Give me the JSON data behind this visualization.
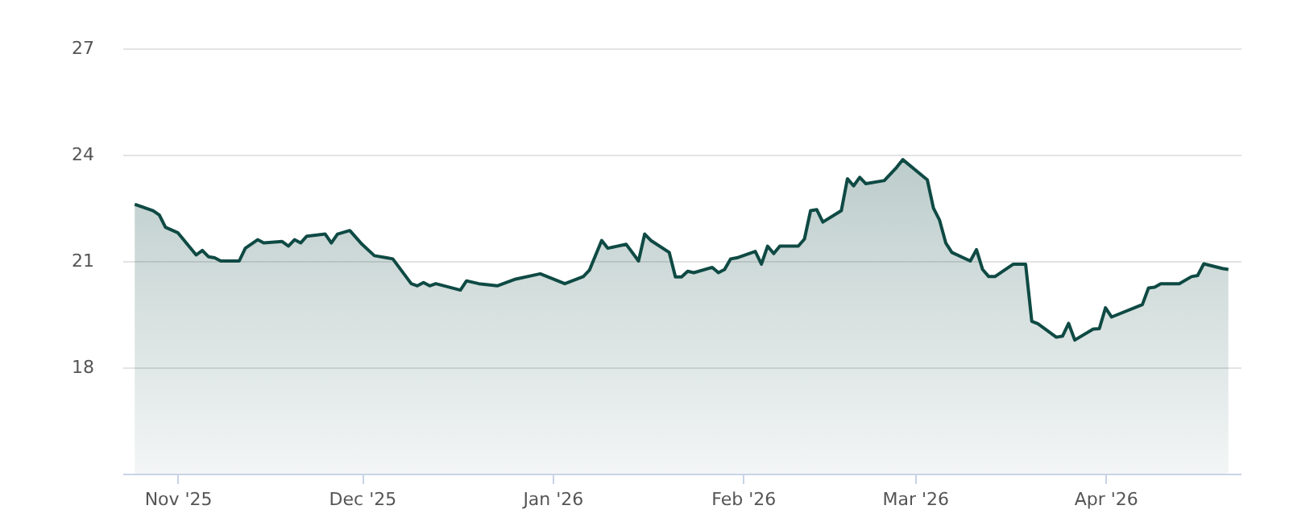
{
  "chart_data": {
    "type": "area",
    "grid": "y",
    "xlim": [
      "2025-10-23",
      "2026-04-23"
    ],
    "ylim": [
      15,
      27
    ],
    "yticks": [
      18,
      21,
      24,
      27
    ],
    "xticks": [
      {
        "value": "2025-11-01",
        "label": "Nov '25"
      },
      {
        "value": "2025-12-01",
        "label": "Dec '25"
      },
      {
        "value": "2026-01-01",
        "label": "Jan '26"
      },
      {
        "value": "2026-02-01",
        "label": "Feb '26"
      },
      {
        "value": "2026-03-01",
        "label": "Mar '26"
      },
      {
        "value": "2026-04-01",
        "label": "Apr '26"
      }
    ],
    "x": [
      "2025-10-25",
      "2025-10-28",
      "2025-10-29",
      "2025-10-30",
      "2025-11-01",
      "2025-11-04",
      "2025-11-05",
      "2025-11-06",
      "2025-11-07",
      "2025-11-08",
      "2025-11-11",
      "2025-11-12",
      "2025-11-14",
      "2025-11-15",
      "2025-11-18",
      "2025-11-19",
      "2025-11-20",
      "2025-11-21",
      "2025-11-22",
      "2025-11-25",
      "2025-11-26",
      "2025-11-27",
      "2025-11-29",
      "2025-12-01",
      "2025-12-03",
      "2025-12-05",
      "2025-12-06",
      "2025-12-09",
      "2025-12-10",
      "2025-12-11",
      "2025-12-12",
      "2025-12-13",
      "2025-12-17",
      "2025-12-18",
      "2025-12-20",
      "2025-12-23",
      "2025-12-26",
      "2025-12-30",
      "2026-01-03",
      "2026-01-06",
      "2026-01-07",
      "2026-01-09",
      "2026-01-10",
      "2026-01-13",
      "2026-01-15",
      "2026-01-16",
      "2026-01-17",
      "2026-01-20",
      "2026-01-21",
      "2026-01-22",
      "2026-01-23",
      "2026-01-24",
      "2026-01-27",
      "2026-01-28",
      "2026-01-29",
      "2026-01-30",
      "2026-01-31",
      "2026-02-03",
      "2026-02-04",
      "2026-02-05",
      "2026-02-06",
      "2026-02-07",
      "2026-02-10",
      "2026-02-11",
      "2026-02-12",
      "2026-02-13",
      "2026-02-14",
      "2026-02-17",
      "2026-02-18",
      "2026-02-19",
      "2026-02-20",
      "2026-02-21",
      "2026-02-24",
      "2026-02-26",
      "2026-02-27",
      "2026-03-03",
      "2026-03-04",
      "2026-03-05",
      "2026-03-06",
      "2026-03-07",
      "2026-03-10",
      "2026-03-11",
      "2026-03-12",
      "2026-03-13",
      "2026-03-14",
      "2026-03-17",
      "2026-03-19",
      "2026-03-20",
      "2026-03-21",
      "2026-03-24",
      "2026-03-25",
      "2026-03-26",
      "2026-03-27",
      "2026-03-30",
      "2026-03-31",
      "2026-04-01",
      "2026-04-02",
      "2026-04-07",
      "2026-04-08",
      "2026-04-09",
      "2026-04-10",
      "2026-04-13",
      "2026-04-15",
      "2026-04-16",
      "2026-04-17",
      "2026-04-20",
      "2026-04-21"
    ],
    "series": [
      {
        "color": "#0f4a44",
        "values": [
          22.6,
          22.42,
          22.3,
          21.95,
          21.8,
          21.17,
          21.3,
          21.12,
          21.09,
          21.0,
          21.0,
          21.36,
          21.6,
          21.51,
          21.55,
          21.42,
          21.6,
          21.51,
          21.7,
          21.76,
          21.51,
          21.76,
          21.86,
          21.47,
          21.15,
          21.09,
          21.06,
          20.36,
          20.3,
          20.39,
          20.3,
          20.36,
          20.18,
          20.44,
          20.36,
          20.3,
          20.49,
          20.64,
          20.36,
          20.56,
          20.74,
          21.58,
          21.36,
          21.47,
          21.0,
          21.76,
          21.58,
          21.24,
          20.55,
          20.55,
          20.71,
          20.67,
          20.82,
          20.67,
          20.76,
          21.06,
          21.09,
          21.27,
          20.91,
          21.42,
          21.21,
          21.42,
          21.42,
          21.62,
          22.42,
          22.45,
          22.1,
          22.42,
          23.32,
          23.12,
          23.36,
          23.18,
          23.27,
          23.64,
          23.86,
          23.29,
          22.49,
          22.15,
          21.51,
          21.24,
          21.0,
          21.32,
          20.76,
          20.56,
          20.56,
          20.91,
          20.91,
          19.3,
          19.23,
          18.85,
          18.88,
          19.24,
          18.77,
          19.08,
          19.09,
          19.68,
          19.42,
          19.77,
          20.24,
          20.26,
          20.36,
          20.36,
          20.56,
          20.59,
          20.92,
          20.79,
          20.76
        ]
      }
    ]
  }
}
